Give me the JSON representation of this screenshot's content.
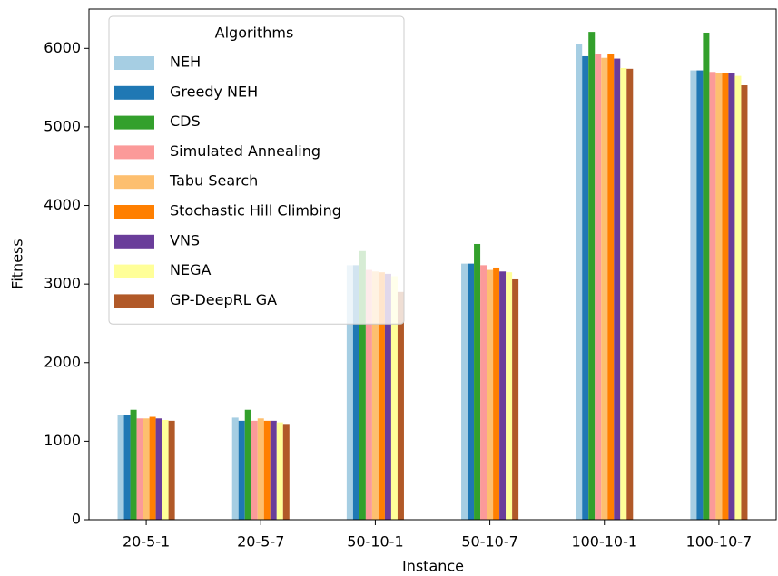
{
  "chart_data": {
    "type": "bar",
    "x_label": "Instance",
    "y_label": "Fitness",
    "legend_title": "Algorithms",
    "legend_position": "upper left",
    "categories": [
      "20-5-1",
      "20-5-7",
      "50-10-1",
      "50-10-7",
      "100-10-1",
      "100-10-7"
    ],
    "series": [
      {
        "name": "NEH",
        "color": "#a6cee3",
        "values": [
          1330,
          1300,
          3240,
          3260,
          6050,
          5720
        ]
      },
      {
        "name": "Greedy NEH",
        "color": "#1f78b4",
        "values": [
          1330,
          1260,
          3240,
          3260,
          5900,
          5720
        ]
      },
      {
        "name": "CDS",
        "color": "#33a02c",
        "values": [
          1400,
          1400,
          3420,
          3510,
          6210,
          6200
        ]
      },
      {
        "name": "Simulated Annealing",
        "color": "#fb9a99",
        "values": [
          1290,
          1260,
          3180,
          3240,
          5930,
          5700
        ]
      },
      {
        "name": "Tabu Search",
        "color": "#fdbf6f",
        "values": [
          1290,
          1290,
          3160,
          3180,
          5880,
          5690
        ]
      },
      {
        "name": "Stochastic Hill Climbing",
        "color": "#ff7f00",
        "values": [
          1310,
          1260,
          3150,
          3210,
          5930,
          5690
        ]
      },
      {
        "name": "VNS",
        "color": "#6a3d9a",
        "values": [
          1290,
          1260,
          3130,
          3160,
          5870,
          5690
        ]
      },
      {
        "name": "NEGA",
        "color": "#ffff99",
        "values": [
          1270,
          1240,
          3100,
          3150,
          5750,
          5650
        ]
      },
      {
        "name": "GP-DeepRL GA",
        "color": "#b15928",
        "values": [
          1260,
          1220,
          2900,
          3060,
          5740,
          5530
        ]
      }
    ],
    "ylim": [
      0,
      6500
    ],
    "yticks": [
      0,
      1000,
      2000,
      3000,
      4000,
      5000,
      6000
    ]
  }
}
